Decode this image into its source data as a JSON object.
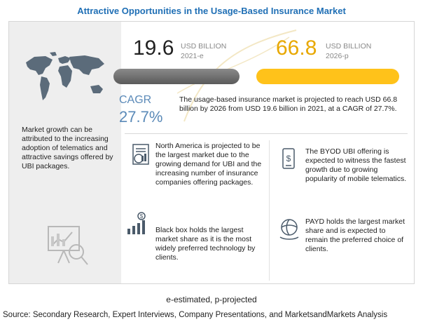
{
  "title": "Attractive Opportunities in the Usage-Based Insurance Market",
  "left": {
    "text": "Market growth can be attributed to the increasing adoption of telematics and attractive savings offered by UBI packages.",
    "map_icon": "world-map-icon",
    "illustration_icon": "presentation-board-icon"
  },
  "stats": {
    "v2021": "19.6",
    "unit2021": "USD BILLION",
    "year2021": "2021-e",
    "v2026": "66.8",
    "unit2026": "USD BILLION",
    "year2026": "2026-p",
    "progress_2021": 0.293,
    "progress_2026": 1.0,
    "bar_dark_color": "#6e6e6e",
    "bar_yellow_color": "#ffc21a"
  },
  "cagr": {
    "label": "CAGR",
    "value": "27.7%",
    "text": "The usage-based insurance market is projected to reach USD 66.8 billion by 2026 from USD 19.6 billion in 2021, at a CAGR of 27.7%."
  },
  "cells": [
    {
      "icon": "bar-chart-report-icon",
      "text": "North America  is projected to be the largest market due to the growing demand for UBI and the increasing number of insurance companies offering packages."
    },
    {
      "icon": "mobile-money-icon",
      "text": "The BYOD UBI offering is expected to witness the fastest growth due to growing popularity of mobile telematics."
    },
    {
      "icon": "dollar-growth-icon",
      "text": "Black box holds the largest market share as it is the most widely preferred technology by clients."
    },
    {
      "icon": "globe-hand-icon",
      "text": "PAYD holds the largest market share and is expected to remain the preferred choice of clients."
    }
  ],
  "footnote": "e-estimated, p-projected",
  "source": "Source: Secondary Research, Expert Interviews, Company Presentations, and MarketsandMarkets Analysis"
}
